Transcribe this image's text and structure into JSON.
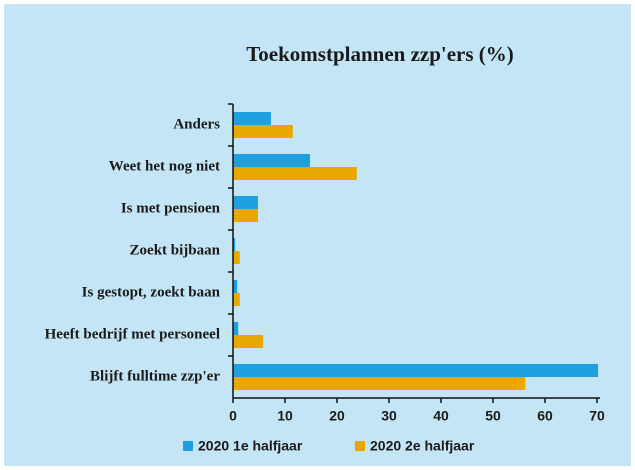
{
  "chart_data": {
    "type": "hbar",
    "title": "Toekomstplannen zzp'ers (%)",
    "categories": [
      "Anders",
      "Weet het nog niet",
      "Is met pensioen",
      "Zoekt bijbaan",
      "Is gestopt, zoekt baan",
      "Heeft bedrijf met personeel",
      "Blijft fulltime zzp'er"
    ],
    "series": [
      {
        "name": "2020 1e halfjaar",
        "color": "#1ea0e0",
        "values": [
          7.3,
          14.8,
          4.8,
          0.4,
          0.8,
          1,
          70.2
        ]
      },
      {
        "name": "2020 2e halfjaar",
        "color": "#e8a800",
        "values": [
          11.5,
          23.8,
          4.8,
          1.3,
          1.3,
          5.8,
          56.2
        ]
      }
    ],
    "xlim": [
      0,
      70
    ],
    "xticks": [
      0,
      10,
      20,
      30,
      40,
      50,
      60,
      70
    ],
    "legend": "bottom"
  }
}
